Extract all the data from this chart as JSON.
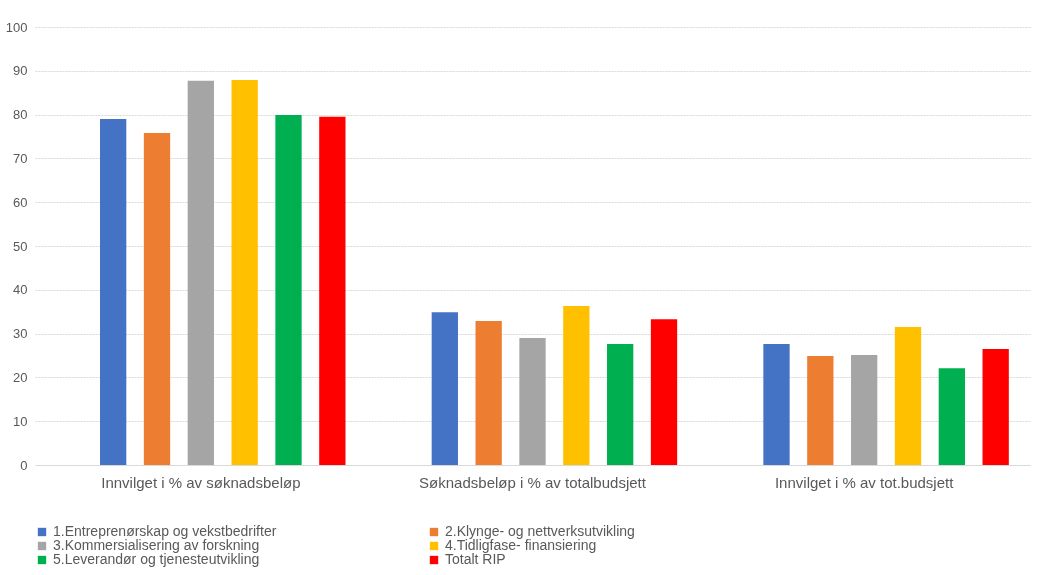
{
  "chart_data": {
    "type": "bar",
    "categories": [
      "Innvilget i % av søknadsbeløp",
      "Søknadsbeløp i % av totalbudsjett",
      "Innvilget i % av tot.budsjett"
    ],
    "series": [
      {
        "name": "1.Entreprenørskap og vekstbedrifter",
        "color": "#4472c4",
        "values": [
          79.0,
          34.9,
          27.6
        ]
      },
      {
        "name": "2.Klynge- og nettverksutvikling",
        "color": "#ed7d31",
        "values": [
          75.8,
          32.9,
          24.9
        ]
      },
      {
        "name": "3.Kommersialisering   av forskning",
        "color": "#a5a5a5",
        "values": [
          87.7,
          29.0,
          25.1
        ]
      },
      {
        "name": "4.Tidligfase-  finansiering",
        "color": "#ffc000",
        "values": [
          87.9,
          36.3,
          31.5
        ]
      },
      {
        "name": "5.Leverandør og tjenesteutvikling",
        "color": "#00b050",
        "values": [
          79.9,
          27.6,
          22.1
        ]
      },
      {
        "name": "Totalt RIP",
        "color": "#ff0000",
        "values": [
          79.5,
          33.3,
          26.5
        ]
      }
    ],
    "ylim": [
      0,
      100
    ],
    "yticks": [
      0,
      10,
      20,
      30,
      40,
      50,
      60,
      70,
      80,
      90,
      100
    ],
    "grid": "y",
    "legend": "bottom"
  }
}
